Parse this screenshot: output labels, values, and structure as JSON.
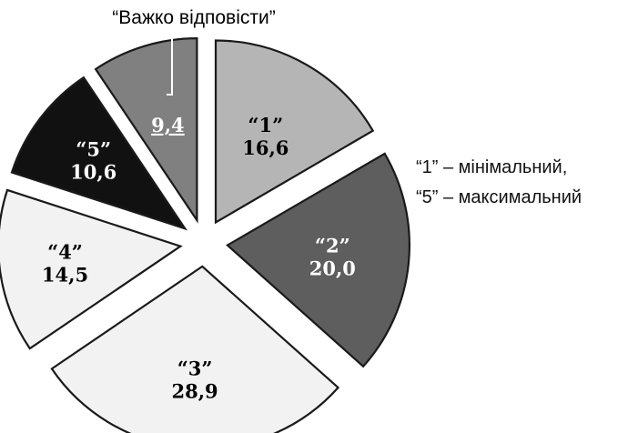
{
  "chart_data": {
    "type": "pie",
    "exploded": true,
    "slices": [
      {
        "category": "“1”",
        "value": "16,6",
        "number": 16.6,
        "color": "#b5b5b5",
        "text_color": "#000000"
      },
      {
        "category": "“2”",
        "value": "20,0",
        "number": 20.0,
        "color": "#5e5e5e",
        "text_color": "#ffffff"
      },
      {
        "category": "“3”",
        "value": "28,9",
        "number": 28.9,
        "color": "#f2f2f2",
        "text_color": "#000000"
      },
      {
        "category": "“4”",
        "value": "14,5",
        "number": 14.5,
        "color": "#f2f2f2",
        "text_color": "#000000"
      },
      {
        "category": "“5”",
        "value": "10,6",
        "number": 10.6,
        "color": "#111111",
        "text_color": "#ffffff"
      },
      {
        "category": "",
        "value": "9,4",
        "number": 9.4,
        "color": "#808080",
        "text_color": "#ffffff"
      }
    ],
    "callout": "“Важко відповісти”",
    "legend": [
      "“1” – мінімальний,",
      "“5” – максимальний"
    ]
  }
}
